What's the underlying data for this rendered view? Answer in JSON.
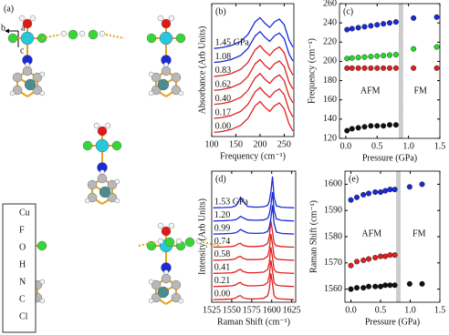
{
  "structure_panel": {
    "label": "(a)",
    "axes": [
      "b",
      "a",
      "c"
    ],
    "legend": [
      "Cu",
      "F",
      "O",
      "H",
      "N",
      "C",
      "Cl"
    ]
  },
  "chart_data": [
    {
      "type": "line",
      "label": "(b)",
      "xlabel": "Frequency (cm⁻¹)",
      "ylabel": "Absorbance (Arb Units)",
      "xlim": [
        100,
        270
      ],
      "ylim": [
        0,
        9.5
      ],
      "xticks": [
        100,
        150,
        200,
        250
      ],
      "x": [
        105,
        120,
        140,
        160,
        175,
        190,
        200,
        210,
        220,
        230,
        240,
        250,
        260,
        268
      ],
      "series": [
        {
          "name": "0.00",
          "color": "#e02020",
          "values": [
            0.3,
            0.35,
            0.5,
            0.8,
            1.3,
            2.2,
            2.5,
            2.1,
            1.8,
            2.2,
            2.4,
            2.0,
            0.9,
            0.4
          ]
        },
        {
          "name": "0.17",
          "color": "#e02020",
          "values": [
            1.3,
            1.35,
            1.5,
            1.8,
            2.3,
            3.2,
            3.5,
            3.1,
            2.8,
            3.2,
            3.4,
            3.0,
            1.9,
            1.4
          ]
        },
        {
          "name": "0.40",
          "color": "#e02020",
          "values": [
            2.3,
            2.35,
            2.5,
            2.8,
            3.3,
            4.2,
            4.5,
            4.1,
            3.8,
            4.2,
            4.4,
            4.0,
            2.9,
            2.4
          ]
        },
        {
          "name": "0.62",
          "color": "#e02020",
          "values": [
            3.3,
            3.35,
            3.5,
            3.8,
            4.3,
            5.2,
            5.5,
            5.1,
            4.8,
            5.2,
            5.4,
            5.0,
            3.9,
            3.4
          ]
        },
        {
          "name": "0.83",
          "color": "#e02020",
          "values": [
            4.3,
            4.35,
            4.5,
            4.8,
            5.3,
            6.2,
            6.5,
            6.1,
            5.8,
            6.2,
            6.4,
            6.0,
            4.9,
            4.4
          ]
        },
        {
          "name": "1.08",
          "color": "#1a2ad8",
          "values": [
            5.3,
            5.35,
            5.5,
            5.8,
            6.3,
            7.2,
            7.5,
            7.1,
            6.8,
            7.2,
            7.4,
            7.0,
            5.9,
            5.4
          ]
        },
        {
          "name": "1.45 GPa",
          "color": "#1a2ad8",
          "values": [
            6.3,
            6.35,
            6.5,
            6.8,
            7.3,
            8.2,
            8.5,
            8.1,
            7.8,
            8.2,
            8.4,
            8.0,
            6.9,
            6.4
          ]
        }
      ]
    },
    {
      "type": "scatter",
      "label": "(c)",
      "xlabel": "Pressure (GPa)",
      "ylabel": "Frequency (cm⁻¹)",
      "xlim": [
        -0.1,
        1.5
      ],
      "ylim": [
        120,
        260
      ],
      "xticks": [
        {
          "value": 0,
          "label": "0.0"
        },
        0.5,
        {
          "value": 1,
          "label": "1.0"
        },
        1.5
      ],
      "yticks": [
        120,
        140,
        160,
        180,
        200,
        220,
        240,
        260
      ],
      "divider": 0.88,
      "annotations": [
        "AFM",
        "FM"
      ],
      "series": [
        {
          "color": "#1a2ad8",
          "x": [
            0.02,
            0.1,
            0.2,
            0.3,
            0.4,
            0.5,
            0.6,
            0.7,
            0.8,
            1.08,
            1.45
          ],
          "values": [
            233,
            234,
            235,
            236,
            237,
            238,
            239,
            240,
            241,
            245,
            246
          ]
        },
        {
          "color": "#2ad82a",
          "x": [
            0.02,
            0.1,
            0.2,
            0.3,
            0.4,
            0.5,
            0.6,
            0.7,
            0.8,
            1.08,
            1.45
          ],
          "values": [
            203,
            203.5,
            204,
            204.5,
            205,
            205.5,
            206,
            206.5,
            207,
            213,
            215
          ]
        },
        {
          "color": "#e02020",
          "x": [
            0.02,
            0.1,
            0.2,
            0.3,
            0.4,
            0.5,
            0.6,
            0.7,
            0.8,
            1.08,
            1.45
          ],
          "values": [
            193,
            193,
            193,
            193,
            193,
            193,
            193,
            193,
            193,
            193,
            193
          ]
        },
        {
          "color": "#111111",
          "x": [
            0.02,
            0.1,
            0.2,
            0.3,
            0.4,
            0.5,
            0.6,
            0.7,
            0.8
          ],
          "values": [
            128,
            130,
            131,
            132,
            133,
            133,
            133,
            134,
            134
          ]
        }
      ]
    },
    {
      "type": "line",
      "label": "(d)",
      "xlabel": "Raman Shift (cm⁻¹)",
      "ylabel": "Intensity (Arb Units)",
      "xlim": [
        1525,
        1630
      ],
      "ylim": [
        0,
        10
      ],
      "xticks": [
        1525,
        1550,
        1575,
        1600,
        1625
      ],
      "x": [
        1527,
        1540,
        1550,
        1555,
        1558,
        1561,
        1564,
        1570,
        1580,
        1590,
        1595,
        1597,
        1599,
        1601,
        1603,
        1606,
        1612,
        1620,
        1628
      ],
      "series": [
        {
          "name": "0.00",
          "color": "#e02020",
          "values": [
            0.2,
            0.22,
            0.25,
            0.32,
            0.45,
            0.5,
            0.35,
            0.25,
            0.25,
            0.3,
            0.5,
            1.0,
            2.2,
            1.4,
            0.5,
            0.3,
            0.25,
            0.22,
            0.2
          ]
        },
        {
          "name": "0.21",
          "color": "#e02020",
          "values": [
            1.2,
            1.22,
            1.25,
            1.32,
            1.45,
            1.5,
            1.35,
            1.25,
            1.25,
            1.3,
            1.5,
            2.0,
            3.2,
            2.4,
            1.5,
            1.3,
            1.25,
            1.22,
            1.2
          ]
        },
        {
          "name": "0.41",
          "color": "#e02020",
          "values": [
            2.2,
            2.22,
            2.25,
            2.32,
            2.45,
            2.5,
            2.35,
            2.25,
            2.25,
            2.3,
            2.5,
            3.0,
            4.2,
            3.4,
            2.5,
            2.3,
            2.25,
            2.22,
            2.2
          ]
        },
        {
          "name": "0.58",
          "color": "#e02020",
          "values": [
            3.2,
            3.22,
            3.25,
            3.32,
            3.45,
            3.5,
            3.35,
            3.25,
            3.25,
            3.3,
            3.5,
            4.0,
            5.2,
            4.4,
            3.5,
            3.3,
            3.25,
            3.22,
            3.2
          ]
        },
        {
          "name": "0.74",
          "color": "#e02020",
          "values": [
            4.2,
            4.22,
            4.25,
            4.32,
            4.45,
            4.5,
            4.35,
            4.25,
            4.25,
            4.3,
            4.5,
            5.0,
            6.2,
            5.4,
            4.5,
            4.3,
            4.25,
            4.22,
            4.2
          ]
        },
        {
          "name": "0.99",
          "color": "#1a2ad8",
          "values": [
            5.2,
            5.22,
            5.25,
            5.3,
            5.4,
            5.55,
            5.45,
            5.28,
            5.25,
            5.28,
            5.4,
            5.7,
            6.4,
            7.4,
            6.0,
            5.35,
            5.25,
            5.22,
            5.2
          ]
        },
        {
          "name": "1.20",
          "color": "#1a2ad8",
          "values": [
            6.2,
            6.22,
            6.25,
            6.3,
            6.4,
            6.55,
            6.45,
            6.28,
            6.25,
            6.28,
            6.4,
            6.7,
            7.4,
            8.4,
            7.0,
            6.35,
            6.25,
            6.22,
            6.2
          ]
        },
        {
          "name": "1.53 GPa",
          "color": "#1a2ad8",
          "values": [
            7.2,
            7.22,
            7.25,
            7.35,
            7.6,
            8.0,
            7.7,
            7.3,
            7.25,
            7.28,
            7.4,
            7.7,
            8.4,
            9.6,
            8.0,
            7.35,
            7.25,
            7.22,
            7.2
          ]
        }
      ]
    },
    {
      "type": "scatter",
      "label": "(e)",
      "xlabel": "Pressure (GPa)",
      "ylabel": "Raman Shift (cm⁻¹)",
      "xlim": [
        -0.1,
        1.5
      ],
      "ylim": [
        1555,
        1605
      ],
      "xticks": [
        {
          "value": 0,
          "label": "0.0"
        },
        0.5,
        {
          "value": 1,
          "label": "1.0"
        },
        1.5
      ],
      "yticks": [
        1560,
        1570,
        1580,
        1590,
        1600
      ],
      "divider": 0.8,
      "annotations": [
        "AFM",
        "FM"
      ],
      "series": [
        {
          "color": "#1a2ad8",
          "x": [
            0.0,
            0.1,
            0.21,
            0.3,
            0.41,
            0.5,
            0.58,
            0.66,
            0.74,
            0.99,
            1.2
          ],
          "values": [
            1594,
            1595,
            1596,
            1596.5,
            1597,
            1597,
            1597.5,
            1598,
            1598,
            1599,
            1600
          ]
        },
        {
          "color": "#e02020",
          "x": [
            0.0,
            0.1,
            0.21,
            0.3,
            0.41,
            0.5,
            0.58,
            0.66,
            0.74
          ],
          "values": [
            1569,
            1570.5,
            1571,
            1571.5,
            1572,
            1572.5,
            1572.5,
            1573,
            1573
          ]
        },
        {
          "color": "#111111",
          "x": [
            0.0,
            0.1,
            0.21,
            0.3,
            0.41,
            0.5,
            0.58,
            0.66,
            0.74,
            0.99,
            1.2
          ],
          "values": [
            1560,
            1560.5,
            1560.5,
            1561,
            1561,
            1561,
            1561.5,
            1561.5,
            1561.5,
            1562,
            1562
          ]
        }
      ]
    }
  ]
}
